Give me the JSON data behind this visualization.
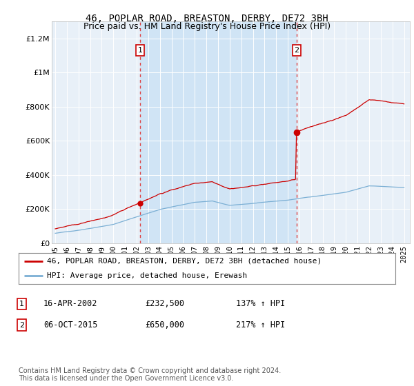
{
  "title": "46, POPLAR ROAD, BREASTON, DERBY, DE72 3BH",
  "subtitle": "Price paid vs. HM Land Registry's House Price Index (HPI)",
  "title_fontsize": 10,
  "subtitle_fontsize": 9,
  "background_color": "#ffffff",
  "plot_bg_color": "#e8f0f8",
  "shade_color": "#d0e4f5",
  "grid_color": "#ffffff",
  "sale1_date": 2002.29,
  "sale1_price": 232500,
  "sale2_date": 2015.77,
  "sale2_price": 650000,
  "xlim": [
    1994.7,
    2025.5
  ],
  "ylim": [
    0,
    1300000
  ],
  "yticks": [
    0,
    200000,
    400000,
    600000,
    800000,
    1000000,
    1200000
  ],
  "ytick_labels": [
    "£0",
    "£200K",
    "£400K",
    "£600K",
    "£800K",
    "£1M",
    "£1.2M"
  ],
  "xticks": [
    1995,
    1996,
    1997,
    1998,
    1999,
    2000,
    2001,
    2002,
    2003,
    2004,
    2005,
    2006,
    2007,
    2008,
    2009,
    2010,
    2011,
    2012,
    2013,
    2014,
    2015,
    2016,
    2017,
    2018,
    2019,
    2020,
    2021,
    2022,
    2023,
    2024,
    2025
  ],
  "legend_label_red": "46, POPLAR ROAD, BREASTON, DERBY, DE72 3BH (detached house)",
  "legend_label_blue": "HPI: Average price, detached house, Erewash",
  "footnote": "Contains HM Land Registry data © Crown copyright and database right 2024.\nThis data is licensed under the Open Government Licence v3.0.",
  "annot1_label": "1",
  "annot1_date_str": "16-APR-2002",
  "annot1_price_str": "£232,500",
  "annot1_hpi_str": "137% ↑ HPI",
  "annot2_label": "2",
  "annot2_date_str": "06-OCT-2015",
  "annot2_price_str": "£650,000",
  "annot2_hpi_str": "217% ↑ HPI",
  "red_color": "#cc0000",
  "blue_color": "#7bafd4",
  "dashed_color": "#dd4444"
}
